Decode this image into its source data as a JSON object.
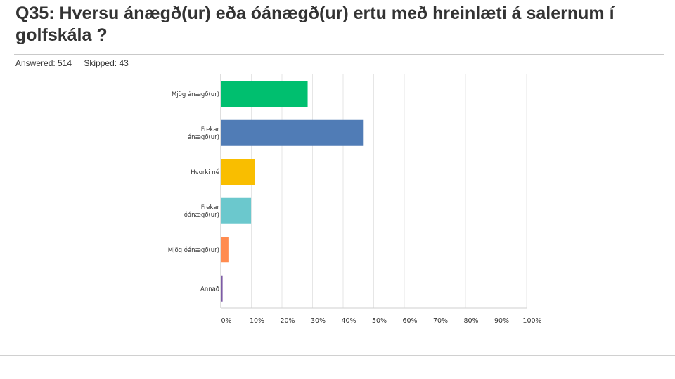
{
  "title": "Q35: Hversu  ánægð(ur) eða óánægð(ur) ertu með hreinlæti á salernum í golfskála ?",
  "stats": {
    "answered": "Answered: 514",
    "skipped": "Skipped: 43"
  },
  "chart_data": {
    "type": "bar",
    "orientation": "horizontal",
    "categories": [
      [
        "Mjög ánægð(ur)"
      ],
      [
        "Frekar",
        "ánægð(ur)"
      ],
      [
        "Hvorki né"
      ],
      [
        "Frekar",
        "óánægð(ur)"
      ],
      [
        "Mjög óánægð(ur)"
      ],
      [
        "Annað"
      ]
    ],
    "values": [
      28.4,
      46.5,
      11.1,
      9.9,
      2.5,
      0.6
    ],
    "colors": [
      "#00bf6f",
      "#507cb6",
      "#f9be00",
      "#6bc8cd",
      "#ff8b4f",
      "#7d5ba6"
    ],
    "xlim": [
      0,
      100
    ],
    "ticks": [
      0,
      10,
      20,
      30,
      40,
      50,
      60,
      70,
      80,
      90,
      100
    ],
    "tick_labels": [
      "0%",
      "10%",
      "20%",
      "30%",
      "40%",
      "50%",
      "60%",
      "70%",
      "80%",
      "90%",
      "100%"
    ],
    "grid": true
  }
}
